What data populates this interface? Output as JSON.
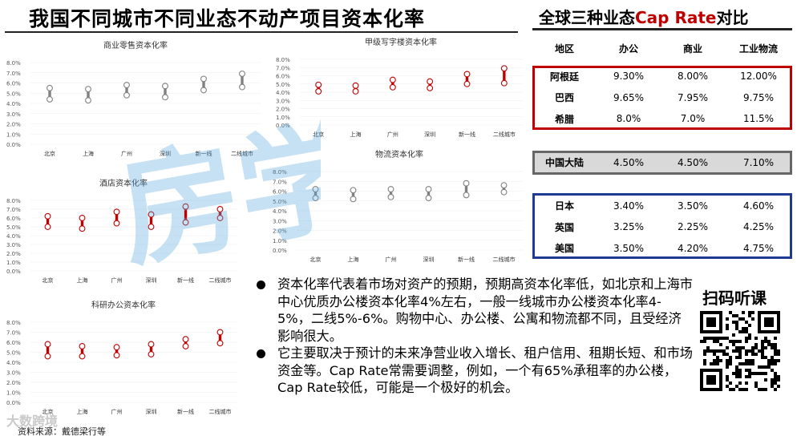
{
  "title": "我国不同城市不同业态不动产项目资本化率",
  "right_title": {
    "prefix": "全球三种业态",
    "highlight": "Cap Rate",
    "suffix": "对比"
  },
  "colors": {
    "accent": "#c00000",
    "gray": "#808080",
    "box_red": "#c00000",
    "box_gray": "#666666",
    "box_blue": "#1f3a93"
  },
  "chart_data": [
    {
      "type": "range",
      "title": "商业零售资本化率",
      "categories": [
        "北京",
        "上海",
        "广州",
        "深圳",
        "新一线",
        "二线城市"
      ],
      "series": [
        {
          "color": "gray",
          "low": [
            4.4,
            4.3,
            4.8,
            4.6,
            5.3,
            5.6
          ],
          "high": [
            5.5,
            5.4,
            5.8,
            5.7,
            6.4,
            6.9
          ]
        }
      ],
      "yticks": [
        "8.0%",
        "7.0%",
        "6.0%",
        "5.0%",
        "4.0%",
        "3.0%",
        "2.0%",
        "1.0%",
        "0.0%"
      ],
      "ylim": [
        0,
        8
      ]
    },
    {
      "type": "range",
      "title": "甲级写字楼资本化率",
      "categories": [
        "北京",
        "上海",
        "广州",
        "深圳",
        "新一线",
        "二线城市"
      ],
      "series": [
        {
          "color": "red",
          "low": [
            4.1,
            4.1,
            4.6,
            4.5,
            5.0,
            5.1
          ],
          "high": [
            4.9,
            4.8,
            5.5,
            5.3,
            6.2,
            6.9
          ]
        }
      ],
      "yticks": [
        "8.0%",
        "7.0%",
        "6.0%",
        "5.0%",
        "4.0%",
        "3.0%",
        "2.0%",
        "1.0%",
        "0.0%"
      ],
      "ylim": [
        0,
        8
      ]
    },
    {
      "type": "range",
      "title": "物流资本化率",
      "categories": [
        "北京",
        "上海",
        "广州",
        "深圳",
        "新一线",
        "二线城市"
      ],
      "series": [
        {
          "color": "gray",
          "low": [
            5.3,
            5.2,
            5.4,
            5.3,
            5.6,
            5.9
          ],
          "high": [
            6.2,
            6.1,
            6.2,
            6.2,
            6.8,
            6.6
          ]
        }
      ],
      "yticks": [
        "8.0%",
        "7.0%",
        "6.0%",
        "5.0%",
        "4.0%",
        "3.0%",
        "2.0%",
        "1.0%",
        "0.0%"
      ],
      "ylim": [
        0,
        8
      ]
    },
    {
      "type": "range",
      "title": "酒店资本化率",
      "categories": [
        "北京",
        "上海",
        "广州",
        "深圳",
        "新一线",
        "二线城市"
      ],
      "series": [
        {
          "color": "red",
          "low": [
            5.0,
            4.8,
            5.4,
            5.0,
            5.5,
            6.0
          ],
          "high": [
            6.2,
            6.0,
            6.7,
            6.4,
            7.3,
            7.0
          ]
        }
      ],
      "yticks": [
        "8.0%",
        "7.0%",
        "6.0%",
        "5.0%",
        "4.0%",
        "3.0%",
        "2.0%",
        "1.0%",
        "0.0%"
      ],
      "ylim": [
        0,
        8
      ]
    },
    {
      "type": "range",
      "title": "科研办公资本化率",
      "categories": [
        "北京",
        "上海",
        "广州",
        "深圳",
        "新一线",
        "二线城市"
      ],
      "series": [
        {
          "color": "red",
          "low": [
            4.6,
            4.6,
            4.7,
            4.8,
            5.6,
            5.9
          ],
          "high": [
            5.8,
            5.6,
            5.5,
            5.8,
            6.3,
            7.0
          ]
        }
      ],
      "yticks": [
        "8.0%",
        "7.0%",
        "6.0%",
        "5.0%",
        "4.0%",
        "3.0%",
        "2.0%",
        "1.0%",
        "0.0%"
      ],
      "ylim": [
        0,
        8
      ]
    }
  ],
  "table": {
    "headers": [
      "地区",
      "办公",
      "商业",
      "工业物流"
    ],
    "groups": [
      {
        "border": "box_red",
        "rows": [
          [
            "阿根廷",
            "9.30%",
            "8.00%",
            "12.00%"
          ],
          [
            "巴西",
            "9.65%",
            "7.95%",
            "9.75%"
          ],
          [
            "希腊",
            "8.0%",
            "7.0%",
            "11.5%"
          ]
        ]
      },
      {
        "border": "box_gray",
        "rows": [
          [
            "中国大陆",
            "4.50%",
            "4.50%",
            "7.10%"
          ]
        ]
      },
      {
        "border": "box_blue",
        "rows": [
          [
            "日本",
            "3.40%",
            "3.50%",
            "4.60%"
          ],
          [
            "英国",
            "3.25%",
            "2.25%",
            "4.25%"
          ],
          [
            "美国",
            "3.50%",
            "4.20%",
            "4.75%"
          ]
        ]
      }
    ]
  },
  "bullets": [
    "资本化率代表着市场对资产的预期，预期高资本化率低，如北京和上海市中心优质办公楼资本化率4%左右，一般一线城市办公楼资本化率4-5%，二线5%-6%。购物中心、办公楼、公寓和物流都不同，且受经济影响很大。",
    "它主要取决于预计的未来净营业收入增长、租户信用、租期长短、和市场资金等。Cap Rate常需要调整，例如，一个有65%承租率的办公楼，Cap Rate较低，可能是一个极好的机会。"
  ],
  "qr_title": "扫码听课",
  "watermark": "房学院",
  "source": "资料来源：戴德梁行等",
  "logo": "大数跨境"
}
